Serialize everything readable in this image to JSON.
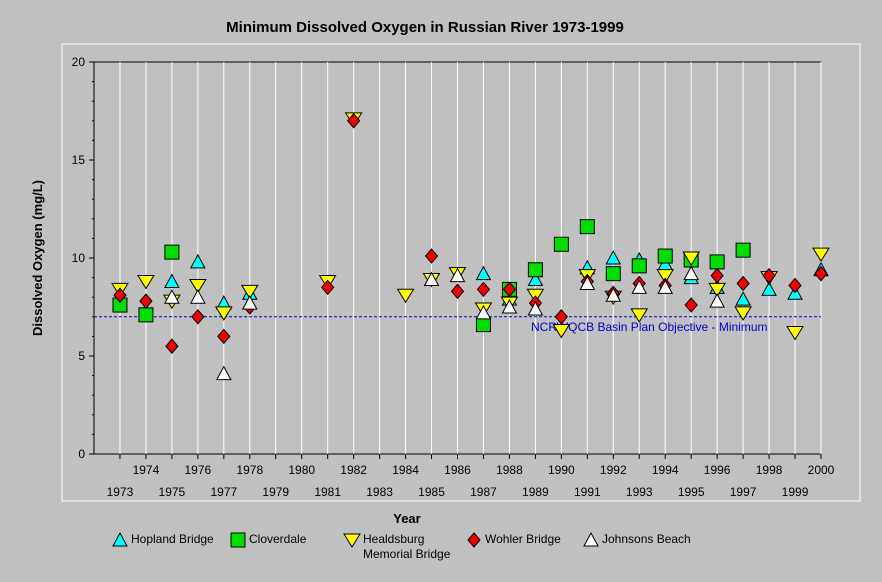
{
  "chart_data": {
    "type": "scatter",
    "title": "Minimum Dissolved Oxygen in Russian River 1973-1999",
    "xlabel": "Year",
    "ylabel": "Dissolved Oxygen (mg/L)",
    "xlim": [
      1972,
      2000
    ],
    "ylim": [
      0,
      20
    ],
    "y_ticks": [
      "0",
      "5",
      "10",
      "15",
      "20"
    ],
    "x_ticks_upper": [
      "1974",
      "1976",
      "1978",
      "1980",
      "1982",
      "1984",
      "1986",
      "1988",
      "1990",
      "1992",
      "1994",
      "1996",
      "1998",
      "2000"
    ],
    "x_ticks_lower": [
      "1973",
      "1975",
      "1977",
      "1979",
      "1981",
      "1983",
      "1985",
      "1987",
      "1989",
      "1991",
      "1993",
      "1995",
      "1997",
      "1999"
    ],
    "grid": "vertical gridlines at each year",
    "reference_line": {
      "value": 7,
      "label": "NCRWQCB Basin Plan Objective - Minimum",
      "color": "#0000cc"
    },
    "legend_position": "bottom",
    "series": [
      {
        "name": "Hopland Bridge",
        "marker": "triangle-up",
        "color": "#00ffff",
        "points": [
          [
            1973,
            7.7
          ],
          [
            1974,
            7.3
          ],
          [
            1975,
            8.8
          ],
          [
            1976,
            9.8
          ],
          [
            1977,
            7.7
          ],
          [
            1978,
            8.2
          ],
          [
            1987,
            9.2
          ],
          [
            1988,
            7.9
          ],
          [
            1989,
            8.9
          ],
          [
            1991,
            9.5
          ],
          [
            1992,
            10.0
          ],
          [
            1993,
            9.9
          ],
          [
            1994,
            9.7
          ],
          [
            1995,
            9.0
          ],
          [
            1996,
            8.5
          ],
          [
            1997,
            7.9
          ],
          [
            1998,
            8.4
          ],
          [
            1999,
            8.2
          ],
          [
            2000,
            9.4
          ]
        ]
      },
      {
        "name": "Cloverdale",
        "marker": "square",
        "color": "#00dd00",
        "points": [
          [
            1973,
            7.6
          ],
          [
            1974,
            7.1
          ],
          [
            1975,
            10.3
          ],
          [
            1987,
            6.6
          ],
          [
            1988,
            8.4
          ],
          [
            1989,
            9.4
          ],
          [
            1990,
            10.7
          ],
          [
            1991,
            11.6
          ],
          [
            1992,
            9.2
          ],
          [
            1993,
            9.6
          ],
          [
            1994,
            10.1
          ],
          [
            1995,
            9.9
          ],
          [
            1996,
            9.8
          ],
          [
            1997,
            10.4
          ]
        ]
      },
      {
        "name": "Healdsburg Memorial Bridge",
        "legend_lines": [
          "Healdsburg",
          "Memorial Bridge"
        ],
        "marker": "triangle-down",
        "color": "#ffff00",
        "points": [
          [
            1973,
            8.4
          ],
          [
            1974,
            8.8
          ],
          [
            1975,
            7.8
          ],
          [
            1976,
            8.6
          ],
          [
            1977,
            7.2
          ],
          [
            1978,
            8.3
          ],
          [
            1981,
            8.8
          ],
          [
            1982,
            17.1
          ],
          [
            1984,
            8.1
          ],
          [
            1985,
            8.9
          ],
          [
            1986,
            9.2
          ],
          [
            1987,
            7.4
          ],
          [
            1988,
            7.7
          ],
          [
            1989,
            8.1
          ],
          [
            1990,
            6.3
          ],
          [
            1991,
            9.1
          ],
          [
            1992,
            8.0
          ],
          [
            1993,
            7.1
          ],
          [
            1994,
            9.1
          ],
          [
            1995,
            10.0
          ],
          [
            1996,
            8.4
          ],
          [
            1997,
            7.2
          ],
          [
            1998,
            9.0
          ],
          [
            1999,
            6.2
          ],
          [
            2000,
            10.2
          ]
        ]
      },
      {
        "name": "Wohler Bridge",
        "marker": "diamond",
        "color": "#ee0000",
        "points": [
          [
            1973,
            8.1
          ],
          [
            1974,
            7.8
          ],
          [
            1975,
            5.5
          ],
          [
            1976,
            7.0
          ],
          [
            1977,
            6.0
          ],
          [
            1978,
            7.5
          ],
          [
            1981,
            8.5
          ],
          [
            1982,
            17.0
          ],
          [
            1985,
            10.1
          ],
          [
            1986,
            8.3
          ],
          [
            1987,
            8.4
          ],
          [
            1988,
            8.4
          ],
          [
            1989,
            7.7
          ],
          [
            1990,
            7.0
          ],
          [
            1991,
            8.8
          ],
          [
            1992,
            8.2
          ],
          [
            1993,
            8.7
          ],
          [
            1994,
            8.6
          ],
          [
            1995,
            7.6
          ],
          [
            1996,
            9.1
          ],
          [
            1997,
            8.7
          ],
          [
            1998,
            9.1
          ],
          [
            1999,
            8.6
          ],
          [
            2000,
            9.2
          ]
        ]
      },
      {
        "name": "Johnsons Beach",
        "marker": "triangle-up-open",
        "color": "#ffffff",
        "points": [
          [
            1975,
            8.0
          ],
          [
            1976,
            8.0
          ],
          [
            1977,
            4.1
          ],
          [
            1978,
            7.7
          ],
          [
            1985,
            8.9
          ],
          [
            1986,
            9.1
          ],
          [
            1987,
            7.2
          ],
          [
            1988,
            7.5
          ],
          [
            1989,
            7.4
          ],
          [
            1991,
            8.7
          ],
          [
            1992,
            8.1
          ],
          [
            1993,
            8.5
          ],
          [
            1994,
            8.5
          ],
          [
            1995,
            9.2
          ],
          [
            1996,
            7.8
          ]
        ]
      }
    ]
  }
}
